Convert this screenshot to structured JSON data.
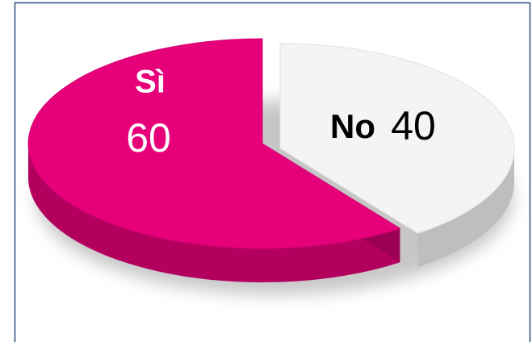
{
  "chart_data": {
    "type": "pie",
    "categories": [
      "Sì",
      "No"
    ],
    "values": [
      60,
      40
    ],
    "colors": [
      "#e6007a",
      "#f4f4f4"
    ],
    "explode": [
      0,
      1
    ]
  }
}
